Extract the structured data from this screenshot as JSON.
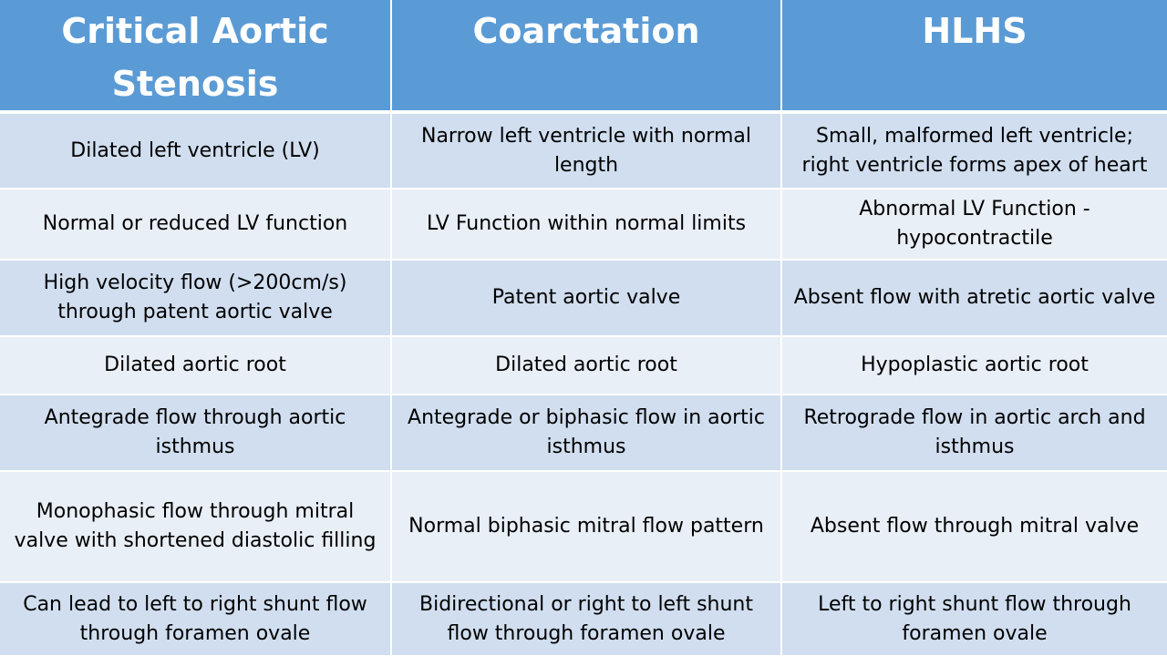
{
  "table": {
    "headers": [
      "Critical Aortic Stenosis",
      "Coarctation",
      "HLHS"
    ],
    "rows": [
      [
        "Dilated left ventricle (LV)",
        "Narrow left ventricle with normal length",
        "Small, malformed left ventricle; right ventricle forms apex of heart"
      ],
      [
        "Normal or reduced LV function",
        "LV Function within normal limits",
        "Abnormal LV Function - hypocontractile"
      ],
      [
        "High velocity flow (>200cm/s) through patent aortic valve",
        "Patent aortic valve",
        "Absent flow with atretic aortic valve"
      ],
      [
        "Dilated aortic root",
        "Dilated aortic root",
        "Hypoplastic aortic root"
      ],
      [
        "Antegrade flow through aortic isthmus",
        "Antegrade or biphasic flow in aortic isthmus",
        "Retrograde flow in aortic arch and isthmus"
      ],
      [
        "Monophasic flow through mitral valve with shortened diastolic filling",
        "Normal biphasic mitral flow pattern",
        "Absent flow through mitral valve"
      ],
      [
        "Can lead to left to right shunt flow through foramen ovale",
        "Bidirectional or right to left shunt flow through foramen ovale",
        "Left to right shunt flow through foramen ovale"
      ]
    ]
  },
  "colors": {
    "header_bg": "#5b9bd5",
    "row_band_dark": "#d0deef",
    "row_band_light": "#e9eff7"
  }
}
